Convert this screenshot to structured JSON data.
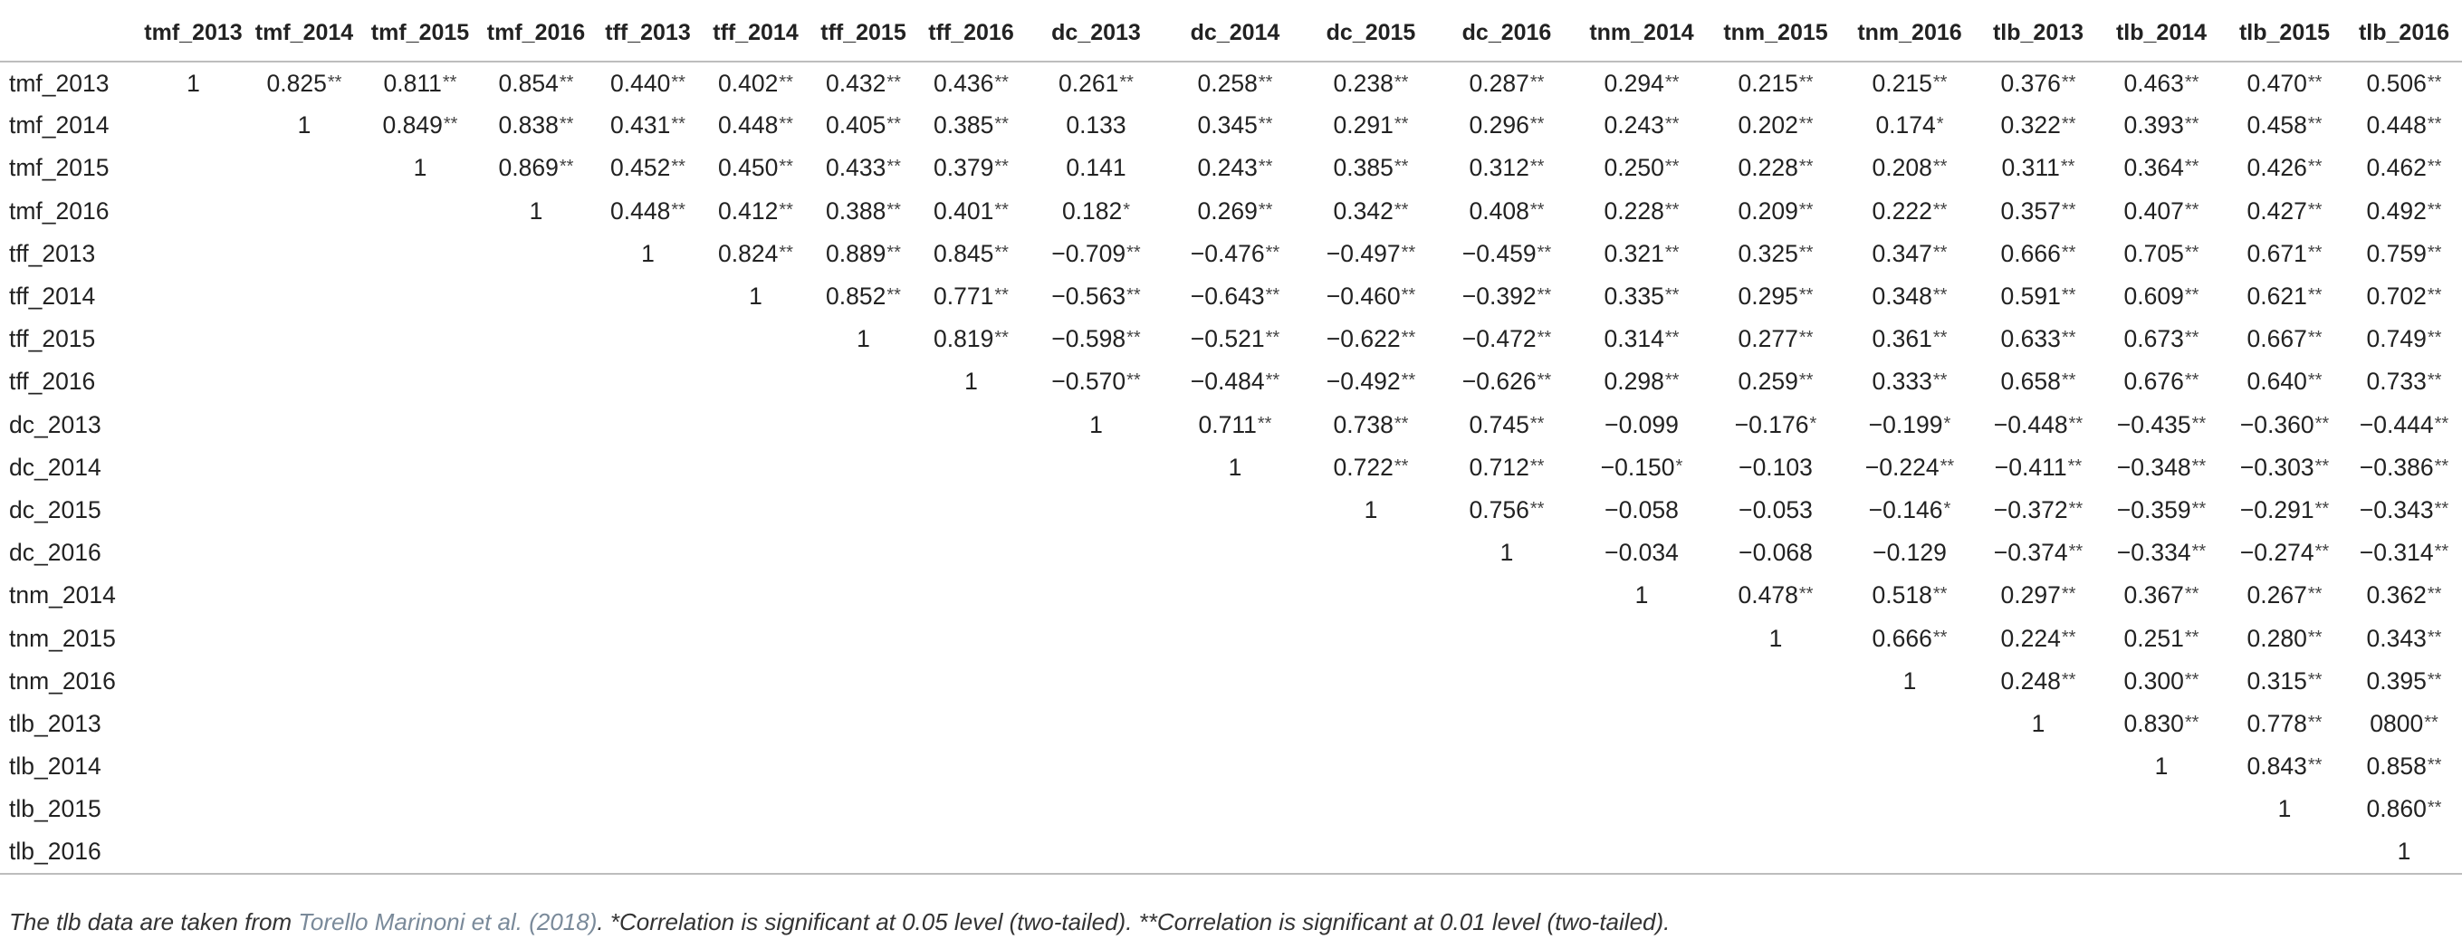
{
  "table": {
    "columns": [
      "",
      "tmf_2013",
      "tmf_2014",
      "tmf_2015",
      "tmf_2016",
      "tff_2013",
      "tff_2014",
      "tff_2015",
      "tff_2016",
      "dc_2013",
      "dc_2014",
      "dc_2015",
      "dc_2016",
      "tnm_2014",
      "tnm_2015",
      "tnm_2016",
      "tlb_2013",
      "tlb_2014",
      "tlb_2015",
      "tlb_2016"
    ],
    "rows": [
      {
        "label": "tmf_2013",
        "cells": [
          "1",
          "0.825**",
          "0.811**",
          "0.854**",
          "0.440**",
          "0.402**",
          "0.432**",
          "0.436**",
          "0.261**",
          "0.258**",
          "0.238**",
          "0.287**",
          "0.294**",
          "0.215**",
          "0.215**",
          "0.376**",
          "0.463**",
          "0.470**",
          "0.506**"
        ]
      },
      {
        "label": "tmf_2014",
        "cells": [
          "",
          "1",
          "0.849**",
          "0.838**",
          "0.431**",
          "0.448**",
          "0.405**",
          "0.385**",
          "0.133",
          "0.345**",
          "0.291**",
          "0.296**",
          "0.243**",
          "0.202**",
          "0.174*",
          "0.322**",
          "0.393**",
          "0.458**",
          "0.448**"
        ]
      },
      {
        "label": "tmf_2015",
        "cells": [
          "",
          "",
          "1",
          "0.869**",
          "0.452**",
          "0.450**",
          "0.433**",
          "0.379**",
          "0.141",
          "0.243**",
          "0.385**",
          "0.312**",
          "0.250**",
          "0.228**",
          "0.208**",
          "0.311**",
          "0.364**",
          "0.426**",
          "0.462**"
        ]
      },
      {
        "label": "tmf_2016",
        "cells": [
          "",
          "",
          "",
          "1",
          "0.448**",
          "0.412**",
          "0.388**",
          "0.401**",
          "0.182*",
          "0.269**",
          "0.342**",
          "0.408**",
          "0.228**",
          "0.209**",
          "0.222**",
          "0.357**",
          "0.407**",
          "0.427**",
          "0.492**"
        ]
      },
      {
        "label": "tff_2013",
        "cells": [
          "",
          "",
          "",
          "",
          "1",
          "0.824**",
          "0.889**",
          "0.845**",
          "−0.709**",
          "−0.476**",
          "−0.497**",
          "−0.459**",
          "0.321**",
          "0.325**",
          "0.347**",
          "0.666**",
          "0.705**",
          "0.671**",
          "0.759**"
        ]
      },
      {
        "label": "tff_2014",
        "cells": [
          "",
          "",
          "",
          "",
          "",
          "1",
          "0.852**",
          "0.771**",
          "−0.563**",
          "−0.643**",
          "−0.460**",
          "−0.392**",
          "0.335**",
          "0.295**",
          "0.348**",
          "0.591**",
          "0.609**",
          "0.621**",
          "0.702**"
        ]
      },
      {
        "label": "tff_2015",
        "cells": [
          "",
          "",
          "",
          "",
          "",
          "",
          "1",
          "0.819**",
          "−0.598**",
          "−0.521**",
          "−0.622**",
          "−0.472**",
          "0.314**",
          "0.277**",
          "0.361**",
          "0.633**",
          "0.673**",
          "0.667**",
          "0.749**"
        ]
      },
      {
        "label": "tff_2016",
        "cells": [
          "",
          "",
          "",
          "",
          "",
          "",
          "",
          "1",
          "−0.570**",
          "−0.484**",
          "−0.492**",
          "−0.626**",
          "0.298**",
          "0.259**",
          "0.333**",
          "0.658**",
          "0.676**",
          "0.640**",
          "0.733**"
        ]
      },
      {
        "label": "dc_2013",
        "cells": [
          "",
          "",
          "",
          "",
          "",
          "",
          "",
          "",
          "1",
          "0.711**",
          "0.738**",
          "0.745**",
          "−0.099",
          "−0.176*",
          "−0.199*",
          "−0.448**",
          "−0.435**",
          "−0.360**",
          "−0.444**"
        ]
      },
      {
        "label": "dc_2014",
        "cells": [
          "",
          "",
          "",
          "",
          "",
          "",
          "",
          "",
          "",
          "1",
          "0.722**",
          "0.712**",
          "−0.150*",
          "−0.103",
          "−0.224**",
          "−0.411**",
          "−0.348**",
          "−0.303**",
          "−0.386**"
        ]
      },
      {
        "label": "dc_2015",
        "cells": [
          "",
          "",
          "",
          "",
          "",
          "",
          "",
          "",
          "",
          "",
          "1",
          "0.756**",
          "−0.058",
          "−0.053",
          "−0.146*",
          "−0.372**",
          "−0.359**",
          "−0.291**",
          "−0.343**"
        ]
      },
      {
        "label": "dc_2016",
        "cells": [
          "",
          "",
          "",
          "",
          "",
          "",
          "",
          "",
          "",
          "",
          "",
          "1",
          "−0.034",
          "−0.068",
          "−0.129",
          "−0.374**",
          "−0.334**",
          "−0.274**",
          "−0.314**"
        ]
      },
      {
        "label": "tnm_2014",
        "cells": [
          "",
          "",
          "",
          "",
          "",
          "",
          "",
          "",
          "",
          "",
          "",
          "",
          "1",
          "0.478**",
          "0.518**",
          "0.297**",
          "0.367**",
          "0.267**",
          "0.362**"
        ]
      },
      {
        "label": "tnm_2015",
        "cells": [
          "",
          "",
          "",
          "",
          "",
          "",
          "",
          "",
          "",
          "",
          "",
          "",
          "",
          "1",
          "0.666**",
          "0.224**",
          "0.251**",
          "0.280**",
          "0.343**"
        ]
      },
      {
        "label": "tnm_2016",
        "cells": [
          "",
          "",
          "",
          "",
          "",
          "",
          "",
          "",
          "",
          "",
          "",
          "",
          "",
          "",
          "1",
          "0.248**",
          "0.300**",
          "0.315**",
          "0.395**"
        ]
      },
      {
        "label": "tlb_2013",
        "cells": [
          "",
          "",
          "",
          "",
          "",
          "",
          "",
          "",
          "",
          "",
          "",
          "",
          "",
          "",
          "",
          "1",
          "0.830**",
          "0.778**",
          "0800**"
        ]
      },
      {
        "label": "tlb_2014",
        "cells": [
          "",
          "",
          "",
          "",
          "",
          "",
          "",
          "",
          "",
          "",
          "",
          "",
          "",
          "",
          "",
          "",
          "1",
          "0.843**",
          "0.858**"
        ]
      },
      {
        "label": "tlb_2015",
        "cells": [
          "",
          "",
          "",
          "",
          "",
          "",
          "",
          "",
          "",
          "",
          "",
          "",
          "",
          "",
          "",
          "",
          "",
          "1",
          "0.860**"
        ]
      },
      {
        "label": "tlb_2016",
        "cells": [
          "",
          "",
          "",
          "",
          "",
          "",
          "",
          "",
          "",
          "",
          "",
          "",
          "",
          "",
          "",
          "",
          "",
          "",
          "1"
        ]
      }
    ]
  },
  "footnote": {
    "prefix": "The tlb data are taken from ",
    "reference": "Torello Marinoni et al. (2018)",
    "suffix": ". *Correlation is significant at 0.05 level (two-tailed). **Correlation is significant at 0.01 level (two-tailed)."
  },
  "colors": {
    "text": "#222222",
    "rule": "#bdbdbd",
    "reference_link": "#7a8a9a"
  }
}
